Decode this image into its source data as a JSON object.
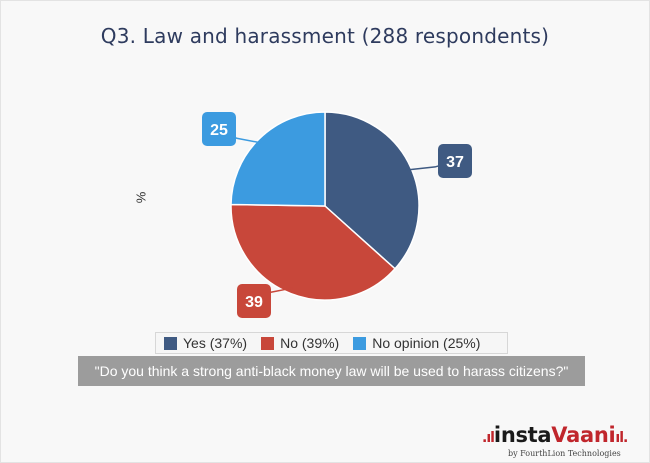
{
  "chart_data": {
    "type": "pie",
    "title": "Q3. Law and harassment (288 respondents)",
    "ylabel": "%",
    "legend_position": "bottom",
    "series": [
      {
        "name": "Yes (37%)",
        "value": 37,
        "label": "37",
        "color": "#3f5a82"
      },
      {
        "name": "No (39%)",
        "value": 39,
        "label": "39",
        "color": "#c8473a"
      },
      {
        "name": "No opinion (25%)",
        "value": 25,
        "label": "25",
        "color": "#3c9be0"
      }
    ]
  },
  "question": "\"Do you think a strong anti-black money law will be used to harass citizens?\"",
  "logo": {
    "prefix_bars": ".ıl",
    "name_black": "insta",
    "name_red": "Vaani",
    "suffix_bars": "ıl.",
    "byline": "by FourthLion Technologies"
  }
}
